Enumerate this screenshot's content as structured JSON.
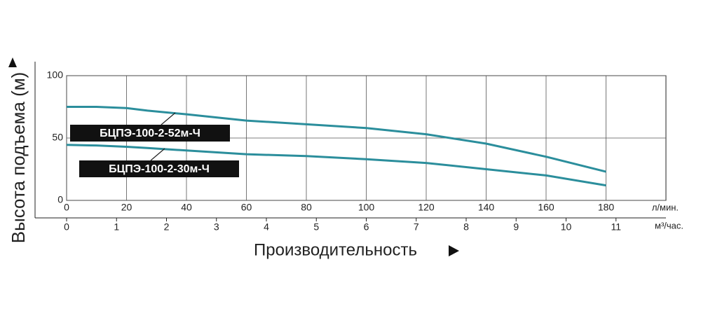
{
  "chart_data": {
    "type": "line",
    "ylabel": "Высота подъема (м)",
    "xlabel": "Производительность",
    "x_unit": "л/мин.",
    "x2_unit": "м³/час.",
    "x": [
      0,
      10,
      20,
      27,
      40,
      60,
      80,
      100,
      120,
      140,
      160,
      180
    ],
    "series": [
      {
        "name": "БЦПЭ-100-2-52м-Ч",
        "color": "#2b8e9c",
        "values": [
          75,
          75,
          74,
          72,
          69,
          64,
          61,
          58,
          53,
          45.5,
          35,
          23
        ]
      },
      {
        "name": "БЦПЭ-100-2-30м-Ч",
        "color": "#2b8e9c",
        "values": [
          44.5,
          44,
          43,
          42,
          40,
          37,
          35.5,
          33,
          30,
          25,
          20,
          12
        ]
      }
    ],
    "xlim": [
      0,
      200
    ],
    "xticks": [
      0,
      20,
      40,
      60,
      80,
      100,
      120,
      140,
      160,
      180
    ],
    "ylim": [
      0,
      100
    ],
    "yticks": [
      0,
      50,
      100
    ],
    "x2lim": [
      0,
      12
    ],
    "x2ticks": [
      0,
      1,
      2,
      3,
      4,
      5,
      6,
      7,
      8,
      9,
      10,
      11
    ],
    "grid": true
  }
}
